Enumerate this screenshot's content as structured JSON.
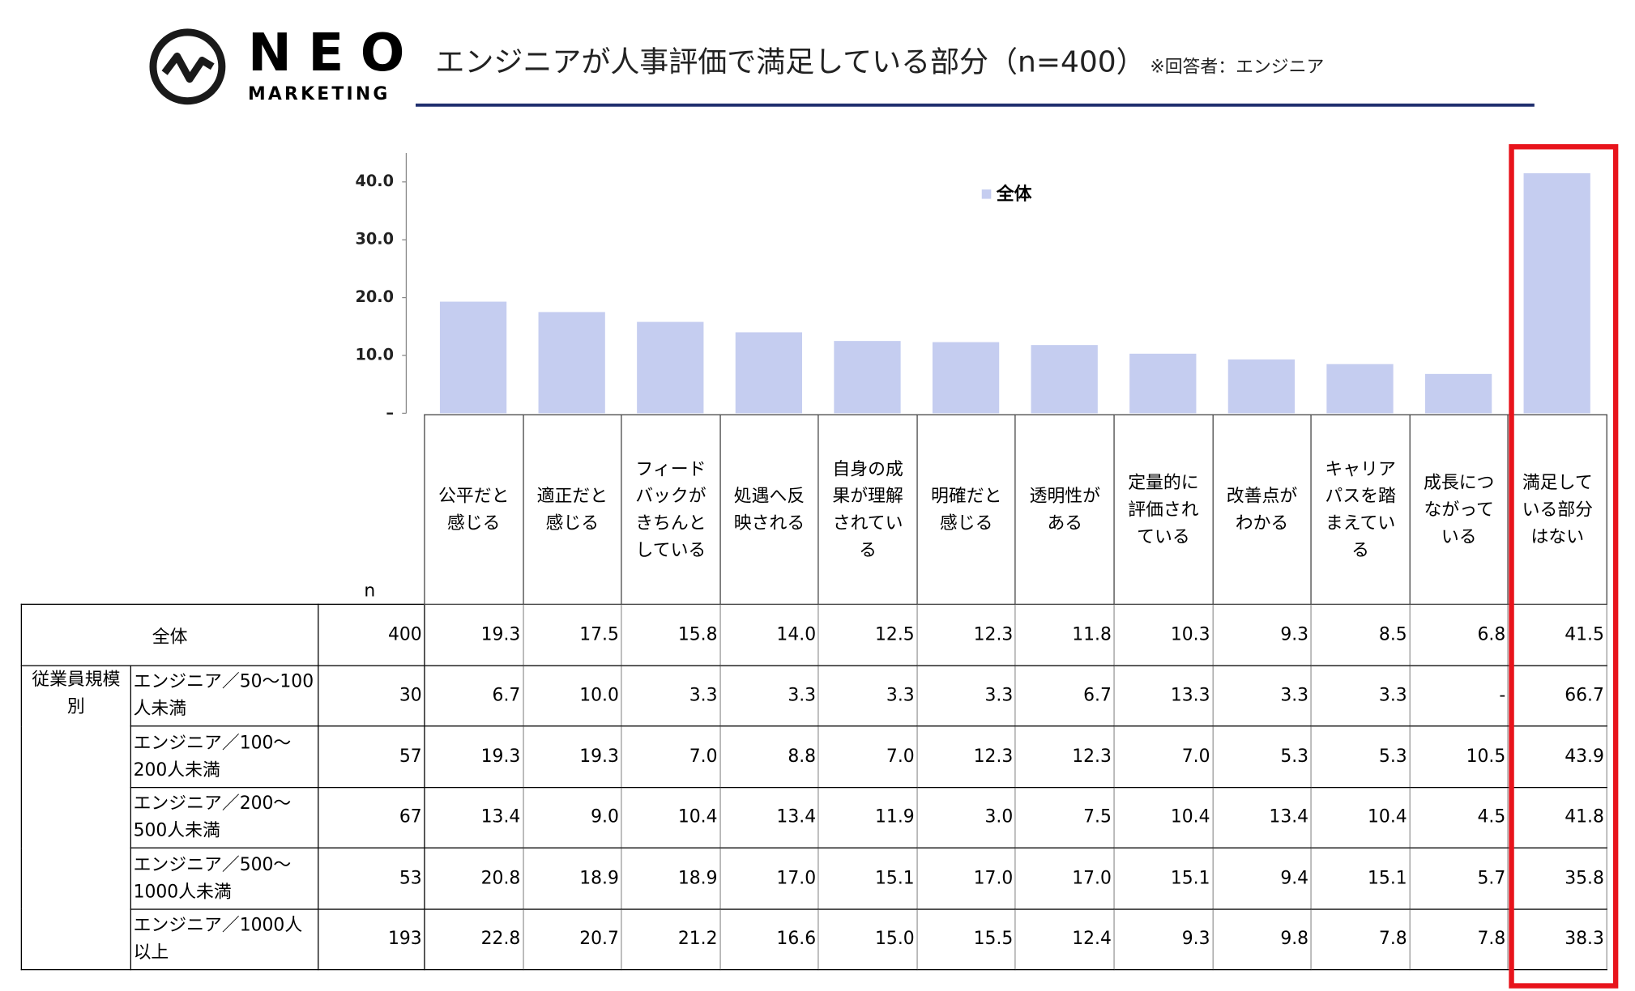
{
  "header": {
    "logo_name": "NEO",
    "logo_sub": "MARKETING",
    "title": "エンジニアが人事評価で満足している部分（n=400）",
    "note": "※回答者：エンジニア"
  },
  "chart_data": {
    "type": "bar",
    "categories": [
      "公平だと感じる",
      "適正だと感じる",
      "フィードバックがきちんとしている",
      "処遇へ反映される",
      "自身の成果が理解されている",
      "明確だと感じる",
      "透明性がある",
      "定量的に評価されている",
      "改善点がわかる",
      "キャリアパスを踏まえている",
      "成長につながっている",
      "満足している部分はない"
    ],
    "series": [
      {
        "name": "全体",
        "color": "#c5cdf0",
        "values": [
          19.3,
          17.5,
          15.8,
          14.0,
          12.5,
          12.3,
          11.8,
          10.3,
          9.3,
          8.5,
          6.8,
          41.5
        ]
      }
    ],
    "ylim": [
      0,
      45
    ],
    "yticks": [
      {
        "value": 0,
        "label": "–"
      },
      {
        "value": 10,
        "label": "10.0"
      },
      {
        "value": 20,
        "label": "20.0"
      },
      {
        "value": 30,
        "label": "30.0"
      },
      {
        "value": 40,
        "label": "40.0"
      }
    ],
    "legend": "top"
  },
  "table": {
    "n_label": "n",
    "total": {
      "label": "全体",
      "n": "400",
      "values": [
        "19.3",
        "17.5",
        "15.8",
        "14.0",
        "12.5",
        "12.3",
        "11.8",
        "10.3",
        "9.3",
        "8.5",
        "6.8",
        "41.5"
      ]
    },
    "group": {
      "label": "従業員規模別",
      "rows": [
        {
          "label": "エンジニア／50～100人未満",
          "n": "30",
          "values": [
            "6.7",
            "10.0",
            "3.3",
            "3.3",
            "3.3",
            "3.3",
            "6.7",
            "13.3",
            "3.3",
            "3.3",
            "-",
            "66.7"
          ]
        },
        {
          "label": "エンジニア／100～200人未満",
          "n": "57",
          "values": [
            "19.3",
            "19.3",
            "7.0",
            "8.8",
            "7.0",
            "12.3",
            "12.3",
            "7.0",
            "5.3",
            "5.3",
            "10.5",
            "43.9"
          ]
        },
        {
          "label": "エンジニア／200～500人未満",
          "n": "67",
          "values": [
            "13.4",
            "9.0",
            "10.4",
            "13.4",
            "11.9",
            "3.0",
            "7.5",
            "10.4",
            "13.4",
            "10.4",
            "4.5",
            "41.8"
          ]
        },
        {
          "label": "エンジニア／500～1000人未満",
          "n": "53",
          "values": [
            "20.8",
            "18.9",
            "18.9",
            "17.0",
            "15.1",
            "17.0",
            "17.0",
            "15.1",
            "9.4",
            "15.1",
            "5.7",
            "35.8"
          ]
        },
        {
          "label": "エンジニア／1000人以上",
          "n": "193",
          "values": [
            "22.8",
            "20.7",
            "21.2",
            "16.6",
            "15.0",
            "15.5",
            "12.4",
            "9.3",
            "9.8",
            "7.8",
            "7.8",
            "38.3"
          ]
        }
      ]
    }
  }
}
